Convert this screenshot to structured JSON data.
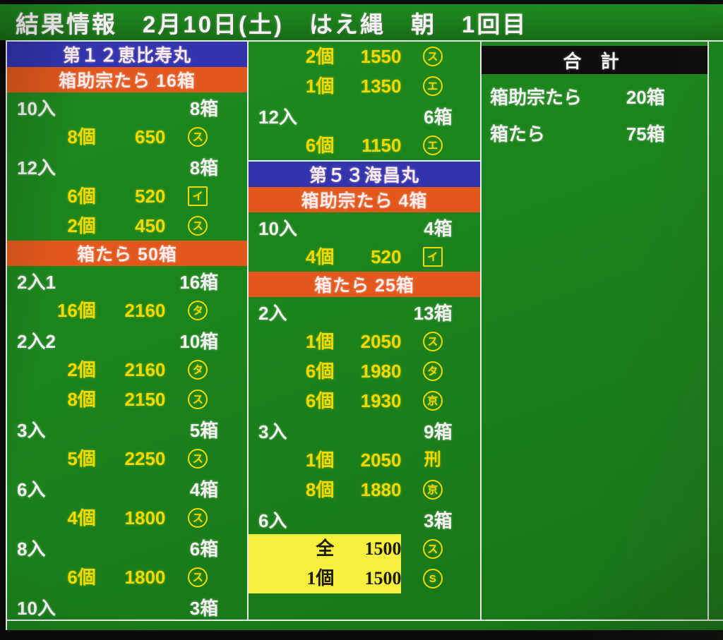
{
  "title": "結果情報　2月10日(土)　はえ縄　朝　1回目",
  "colors": {
    "board_green": "#1b831c",
    "boat_blue": "#3134ad",
    "species_orange": "#e2581c",
    "row_yellow": "#f0d900",
    "row_white": "#f6f2f4",
    "highlight_yellow": "#f6ef3d",
    "totals_black": "#0d0d0d",
    "border_white": "#e6ecec"
  },
  "columns": [
    {
      "name": "column-1",
      "blocks": [
        {
          "rows": [
            {
              "kind": "boat",
              "text": "第１２恵比寿丸"
            },
            {
              "kind": "species",
              "text": "箱助宗たら 16箱"
            },
            {
              "kind": "group",
              "label": "10入",
              "boxes": "8箱"
            },
            {
              "kind": "detail",
              "qty": "8個",
              "price": "650",
              "mark": "ス",
              "shape": "circle"
            },
            {
              "kind": "group",
              "label": "12入",
              "boxes": "8箱"
            },
            {
              "kind": "detail",
              "qty": "6個",
              "price": "520",
              "mark": "イ",
              "shape": "box"
            },
            {
              "kind": "detail",
              "qty": "2個",
              "price": "450",
              "mark": "ス",
              "shape": "circle"
            },
            {
              "kind": "species",
              "text": "箱たら 50箱"
            },
            {
              "kind": "group",
              "label": "2入1",
              "boxes": "16箱"
            },
            {
              "kind": "detail",
              "qty": "16個",
              "price": "2160",
              "mark": "タ",
              "shape": "circle"
            },
            {
              "kind": "group",
              "label": "2入2",
              "boxes": "10箱"
            },
            {
              "kind": "detail",
              "qty": "2個",
              "price": "2160",
              "mark": "タ",
              "shape": "circle"
            },
            {
              "kind": "detail",
              "qty": "8個",
              "price": "2150",
              "mark": "ス",
              "shape": "circle"
            },
            {
              "kind": "group",
              "label": "3入",
              "boxes": "5箱"
            },
            {
              "kind": "detail",
              "qty": "5個",
              "price": "2250",
              "mark": "ス",
              "shape": "circle"
            },
            {
              "kind": "group",
              "label": "6入",
              "boxes": "4箱"
            },
            {
              "kind": "detail",
              "qty": "4個",
              "price": "1800",
              "mark": "ス",
              "shape": "circle"
            },
            {
              "kind": "group",
              "label": "8入",
              "boxes": "6箱"
            },
            {
              "kind": "detail",
              "qty": "6個",
              "price": "1800",
              "mark": "ス",
              "shape": "circle"
            },
            {
              "kind": "group",
              "label": "10入",
              "boxes": "3箱"
            }
          ]
        }
      ]
    },
    {
      "name": "column-2",
      "blocks": [
        {
          "rows": [
            {
              "kind": "detail",
              "qty": "2個",
              "price": "1550",
              "mark": "ス",
              "shape": "circle"
            },
            {
              "kind": "detail",
              "qty": "1個",
              "price": "1350",
              "mark": "エ",
              "shape": "circle"
            },
            {
              "kind": "group",
              "label": "12入",
              "boxes": "6箱"
            },
            {
              "kind": "detail",
              "qty": "6個",
              "price": "1150",
              "mark": "エ",
              "shape": "circle"
            }
          ]
        },
        {
          "rows": [
            {
              "kind": "boat",
              "text": "第５３海昌丸"
            },
            {
              "kind": "species",
              "text": "箱助宗たら 4箱"
            },
            {
              "kind": "group",
              "label": "10入",
              "boxes": "4箱"
            },
            {
              "kind": "detail",
              "qty": "4個",
              "price": "520",
              "mark": "イ",
              "shape": "box"
            },
            {
              "kind": "species",
              "text": "箱たら 25箱"
            },
            {
              "kind": "group",
              "label": "2入",
              "boxes": "13箱"
            },
            {
              "kind": "detail",
              "qty": "1個",
              "price": "2050",
              "mark": "ス",
              "shape": "circle"
            },
            {
              "kind": "detail",
              "qty": "6個",
              "price": "1980",
              "mark": "タ",
              "shape": "circle"
            },
            {
              "kind": "detail",
              "qty": "6個",
              "price": "1930",
              "mark": "京",
              "shape": "circle"
            },
            {
              "kind": "group",
              "label": "3入",
              "boxes": "9箱"
            },
            {
              "kind": "detail",
              "qty": "1個",
              "price": "2050",
              "mark": "刑",
              "shape": "none"
            },
            {
              "kind": "detail",
              "qty": "8個",
              "price": "1880",
              "mark": "京",
              "shape": "circle"
            },
            {
              "kind": "group",
              "label": "6入",
              "boxes": "3箱"
            },
            {
              "kind": "detail",
              "qty": "全",
              "price": "1500",
              "mark": "ス",
              "shape": "circle",
              "highlight": true
            },
            {
              "kind": "detail",
              "qty": "1個",
              "price": "1500",
              "mark": "S",
              "shape": "circle",
              "highlight": true
            }
          ]
        }
      ]
    },
    {
      "name": "column-3",
      "blocks": [
        {
          "rows": [
            {
              "kind": "totals-header",
              "text": "合 計"
            },
            {
              "kind": "total",
              "label": "箱助宗たら",
              "value": "20箱"
            },
            {
              "kind": "total",
              "label": "箱たら",
              "value": "75箱"
            }
          ]
        }
      ]
    }
  ]
}
